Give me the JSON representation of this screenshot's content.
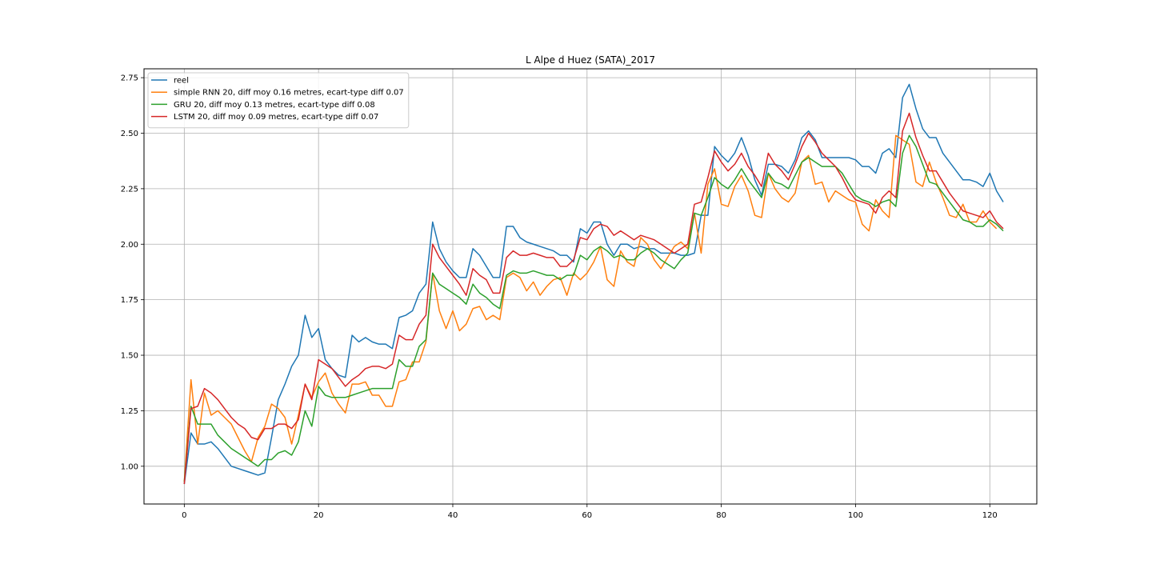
{
  "chart_data": {
    "type": "line",
    "title": "L Alpe d Huez (SATA)_2017",
    "xlabel": "",
    "ylabel": "",
    "xlim": [
      -6,
      127
    ],
    "ylim": [
      0.83,
      2.79
    ],
    "xticks": [
      0,
      20,
      40,
      60,
      80,
      100,
      120
    ],
    "xtick_labels": [
      "0",
      "20",
      "40",
      "60",
      "80",
      "100",
      "120"
    ],
    "yticks": [
      1.0,
      1.25,
      1.5,
      1.75,
      2.0,
      2.25,
      2.5,
      2.75
    ],
    "ytick_labels": [
      "1.00",
      "1.25",
      "1.50",
      "1.75",
      "2.00",
      "2.25",
      "2.50",
      "2.75"
    ],
    "grid": true,
    "legend_position": "top-left",
    "series": [
      {
        "name": "reel",
        "color": "#1f77b4",
        "values": [
          0.92,
          1.15,
          1.1,
          1.1,
          1.11,
          1.08,
          1.04,
          1.0,
          0.99,
          0.98,
          0.97,
          0.96,
          0.97,
          1.13,
          1.3,
          1.37,
          1.45,
          1.5,
          1.68,
          1.58,
          1.62,
          1.48,
          1.44,
          1.41,
          1.4,
          1.59,
          1.56,
          1.58,
          1.56,
          1.55,
          1.55,
          1.53,
          1.67,
          1.68,
          1.7,
          1.78,
          1.82,
          2.1,
          1.98,
          1.92,
          1.88,
          1.85,
          1.85,
          1.98,
          1.95,
          1.9,
          1.85,
          1.85,
          2.08,
          2.08,
          2.03,
          2.01,
          2.0,
          1.99,
          1.98,
          1.97,
          1.95,
          1.95,
          1.92,
          2.07,
          2.05,
          2.1,
          2.1,
          2.0,
          1.95,
          2.0,
          2.0,
          1.98,
          1.99,
          1.98,
          1.98,
          1.96,
          1.96,
          1.96,
          1.95,
          1.95,
          1.96,
          2.13,
          2.13,
          2.44,
          2.4,
          2.37,
          2.41,
          2.48,
          2.4,
          2.29,
          2.22,
          2.36,
          2.36,
          2.35,
          2.32,
          2.38,
          2.48,
          2.51,
          2.47,
          2.39,
          2.39,
          2.39,
          2.39,
          2.39,
          2.38,
          2.35,
          2.35,
          2.32,
          2.41,
          2.43,
          2.39,
          2.66,
          2.72,
          2.61,
          2.52,
          2.48,
          2.48,
          2.41,
          2.37,
          2.33,
          2.29,
          2.29,
          2.28,
          2.26,
          2.32,
          2.24,
          2.19
        ]
      },
      {
        "name": "simple RNN 20, diff moy 0.16 metres, ecart-type diff 0.07",
        "color": "#ff7f0e",
        "values": [
          0.93,
          1.39,
          1.1,
          1.33,
          1.23,
          1.25,
          1.22,
          1.19,
          1.13,
          1.07,
          1.02,
          1.13,
          1.18,
          1.28,
          1.26,
          1.22,
          1.1,
          1.23,
          1.37,
          1.31,
          1.38,
          1.42,
          1.33,
          1.28,
          1.24,
          1.37,
          1.37,
          1.38,
          1.32,
          1.32,
          1.27,
          1.27,
          1.38,
          1.39,
          1.47,
          1.47,
          1.56,
          1.87,
          1.7,
          1.62,
          1.7,
          1.61,
          1.64,
          1.71,
          1.72,
          1.66,
          1.68,
          1.66,
          1.85,
          1.87,
          1.85,
          1.79,
          1.83,
          1.77,
          1.81,
          1.84,
          1.85,
          1.77,
          1.87,
          1.84,
          1.87,
          1.92,
          1.99,
          1.84,
          1.81,
          1.97,
          1.92,
          1.9,
          2.03,
          2.0,
          1.93,
          1.89,
          1.94,
          1.99,
          2.01,
          1.98,
          2.14,
          1.96,
          2.27,
          2.34,
          2.18,
          2.17,
          2.26,
          2.31,
          2.24,
          2.13,
          2.12,
          2.32,
          2.25,
          2.21,
          2.19,
          2.23,
          2.37,
          2.4,
          2.27,
          2.28,
          2.19,
          2.24,
          2.22,
          2.2,
          2.19,
          2.09,
          2.06,
          2.2,
          2.15,
          2.12,
          2.49,
          2.47,
          2.45,
          2.28,
          2.26,
          2.37,
          2.28,
          2.21,
          2.13,
          2.12,
          2.18,
          2.1,
          2.1,
          2.15,
          2.1,
          2.07
        ]
      },
      {
        "name": "GRU 20, diff moy 0.13 metres, ecart-type diff 0.08",
        "color": "#2ca02c",
        "values": [
          0.93,
          1.27,
          1.19,
          1.19,
          1.19,
          1.14,
          1.11,
          1.08,
          1.06,
          1.04,
          1.02,
          1.0,
          1.03,
          1.03,
          1.06,
          1.07,
          1.05,
          1.11,
          1.25,
          1.18,
          1.36,
          1.32,
          1.31,
          1.31,
          1.31,
          1.32,
          1.33,
          1.34,
          1.35,
          1.35,
          1.35,
          1.35,
          1.48,
          1.45,
          1.45,
          1.54,
          1.57,
          1.87,
          1.82,
          1.8,
          1.78,
          1.76,
          1.73,
          1.82,
          1.78,
          1.76,
          1.73,
          1.71,
          1.86,
          1.88,
          1.87,
          1.87,
          1.88,
          1.87,
          1.86,
          1.86,
          1.84,
          1.86,
          1.86,
          1.95,
          1.93,
          1.97,
          1.99,
          1.97,
          1.94,
          1.95,
          1.93,
          1.93,
          1.96,
          1.98,
          1.96,
          1.93,
          1.91,
          1.89,
          1.93,
          1.96,
          2.14,
          2.13,
          2.21,
          2.3,
          2.27,
          2.25,
          2.29,
          2.34,
          2.29,
          2.25,
          2.21,
          2.32,
          2.28,
          2.27,
          2.25,
          2.31,
          2.37,
          2.39,
          2.37,
          2.35,
          2.35,
          2.35,
          2.32,
          2.27,
          2.22,
          2.2,
          2.19,
          2.17,
          2.19,
          2.2,
          2.17,
          2.41,
          2.49,
          2.44,
          2.36,
          2.28,
          2.27,
          2.23,
          2.19,
          2.15,
          2.11,
          2.1,
          2.08,
          2.08,
          2.11,
          2.09,
          2.06
        ]
      },
      {
        "name": "LSTM 20, diff moy 0.09 metres, ecart-type diff 0.07",
        "color": "#d62728",
        "values": [
          0.92,
          1.26,
          1.27,
          1.35,
          1.33,
          1.3,
          1.26,
          1.22,
          1.19,
          1.17,
          1.13,
          1.12,
          1.17,
          1.17,
          1.19,
          1.19,
          1.17,
          1.21,
          1.37,
          1.3,
          1.48,
          1.46,
          1.44,
          1.4,
          1.36,
          1.39,
          1.41,
          1.44,
          1.45,
          1.45,
          1.44,
          1.46,
          1.59,
          1.57,
          1.57,
          1.64,
          1.68,
          2.0,
          1.94,
          1.9,
          1.86,
          1.82,
          1.77,
          1.89,
          1.86,
          1.84,
          1.78,
          1.78,
          1.94,
          1.97,
          1.95,
          1.95,
          1.96,
          1.95,
          1.94,
          1.94,
          1.9,
          1.9,
          1.93,
          2.03,
          2.02,
          2.07,
          2.09,
          2.08,
          2.04,
          2.06,
          2.04,
          2.02,
          2.04,
          2.03,
          2.02,
          2.0,
          1.98,
          1.96,
          1.98,
          2.0,
          2.18,
          2.19,
          2.3,
          2.42,
          2.37,
          2.33,
          2.36,
          2.41,
          2.35,
          2.31,
          2.26,
          2.41,
          2.36,
          2.33,
          2.29,
          2.36,
          2.44,
          2.5,
          2.46,
          2.41,
          2.38,
          2.35,
          2.3,
          2.24,
          2.2,
          2.19,
          2.18,
          2.14,
          2.21,
          2.24,
          2.21,
          2.51,
          2.59,
          2.48,
          2.4,
          2.33,
          2.33,
          2.28,
          2.23,
          2.19,
          2.15,
          2.14,
          2.13,
          2.12,
          2.15,
          2.1,
          2.07
        ]
      }
    ]
  }
}
